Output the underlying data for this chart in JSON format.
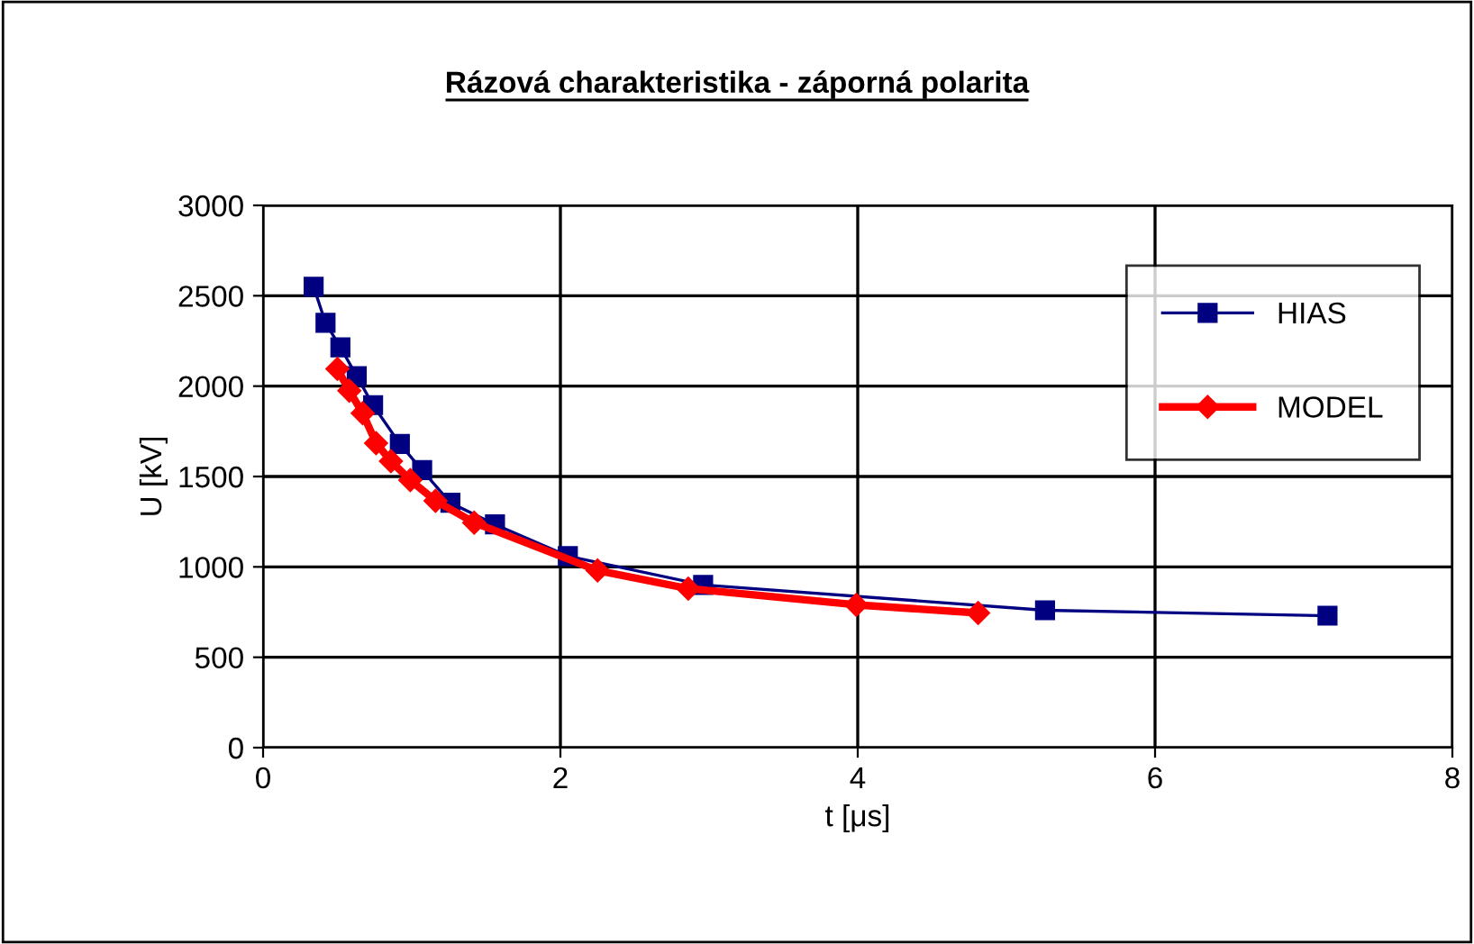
{
  "chart_data": {
    "type": "line",
    "title": "Rázová charakteristika - záporná polarita",
    "xlabel": "t [μs]",
    "ylabel": "U [kV]",
    "xlim": [
      0,
      8
    ],
    "xticks": [
      0,
      2,
      4,
      6,
      8
    ],
    "ylim": [
      0,
      3000
    ],
    "yticks": [
      0,
      500,
      1000,
      1500,
      2000,
      2500,
      3000
    ],
    "grid": true,
    "legend": "right",
    "series": [
      {
        "name": "HIAS",
        "color": "#000080",
        "marker": "square",
        "x": [
          0.34,
          0.42,
          0.52,
          0.63,
          0.74,
          0.92,
          1.07,
          1.26,
          1.56,
          2.05,
          2.96,
          5.26,
          7.16
        ],
        "values": [
          2550,
          2350,
          2215,
          2055,
          1895,
          1680,
          1535,
          1355,
          1235,
          1060,
          900,
          760,
          730
        ]
      },
      {
        "name": "MODEL",
        "color": "#ff0000",
        "marker": "diamond",
        "x": [
          0.5,
          0.58,
          0.67,
          0.76,
          0.86,
          0.99,
          1.16,
          1.42,
          2.25,
          2.86,
          3.99,
          4.81
        ],
        "values": [
          2095,
          1975,
          1850,
          1685,
          1585,
          1480,
          1365,
          1245,
          980,
          880,
          790,
          745
        ]
      }
    ]
  }
}
